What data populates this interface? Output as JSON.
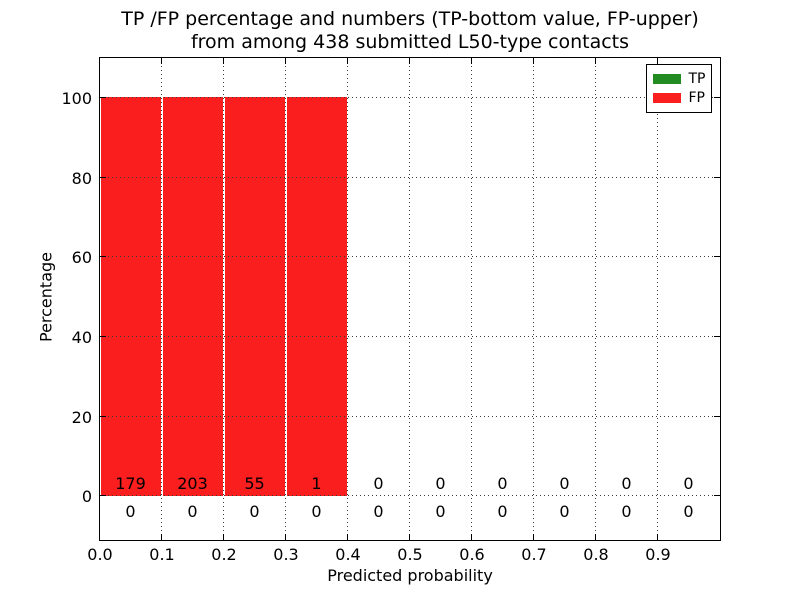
{
  "chart_data": {
    "type": "bar",
    "title_line1": "TP /FP percentage and numbers (TP-bottom value, FP-upper)",
    "title_line2": "from among 438 submitted L50-type contacts",
    "xlabel": "Predicted probability",
    "ylabel": "Percentage",
    "total_submitted": 438,
    "contact_type": "L50",
    "xlim": [
      0.0,
      1.0
    ],
    "ylim": [
      -11,
      110
    ],
    "xticks": [
      "0.0",
      "0.1",
      "0.2",
      "0.3",
      "0.4",
      "0.5",
      "0.6",
      "0.7",
      "0.8",
      "0.9"
    ],
    "yticks": [
      "0",
      "20",
      "40",
      "60",
      "80",
      "100"
    ],
    "ytick_values": [
      0,
      20,
      40,
      60,
      80,
      100
    ],
    "bin_edges": [
      0.0,
      0.1,
      0.2,
      0.3,
      0.4,
      0.5,
      0.6,
      0.7,
      0.8,
      0.9,
      1.0
    ],
    "grid": "dotted, drawn above bars",
    "legend_position": "upper right",
    "series": [
      {
        "name": "TP",
        "color": "#228b22",
        "counts": [
          0,
          0,
          0,
          0,
          0,
          0,
          0,
          0,
          0,
          0
        ],
        "percent": [
          0,
          0,
          0,
          0,
          0,
          0,
          0,
          0,
          0,
          0
        ]
      },
      {
        "name": "FP",
        "color": "#fa1e1e",
        "counts": [
          179,
          203,
          55,
          1,
          0,
          0,
          0,
          0,
          0,
          0
        ],
        "percent": [
          100,
          100,
          100,
          100,
          0,
          0,
          0,
          0,
          0,
          0
        ]
      }
    ]
  }
}
